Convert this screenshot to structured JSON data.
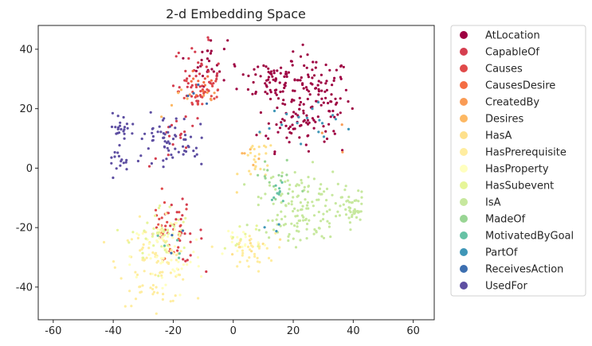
{
  "chart_data": {
    "type": "scatter",
    "title": "2-d Embedding Space",
    "xlabel": "",
    "ylabel": "",
    "xlim": [
      -65,
      67
    ],
    "ylim": [
      -51,
      48
    ],
    "xticks": [
      -60,
      -40,
      -20,
      0,
      20,
      40,
      60
    ],
    "yticks": [
      -40,
      -20,
      0,
      20,
      40
    ],
    "grid": false,
    "legend_position": "outside-right",
    "series": [
      {
        "name": "AtLocation",
        "color": "#9e0142",
        "clusters": [
          {
            "x": 27,
            "y": 24,
            "sx": 6,
            "sy": 7,
            "n": 120
          },
          {
            "x": 12,
            "y": 30,
            "sx": 5,
            "sy": 4,
            "n": 60
          },
          {
            "x": 20,
            "y": 14,
            "sx": 6,
            "sy": 4,
            "n": 40
          },
          {
            "x": -8,
            "y": 36,
            "sx": 3,
            "sy": 4,
            "n": 25
          }
        ]
      },
      {
        "name": "CapableOf",
        "color": "#d53e4f",
        "clusters": [
          {
            "x": -12,
            "y": 30,
            "sx": 4,
            "sy": 6,
            "n": 45
          },
          {
            "x": -18,
            "y": -22,
            "sx": 4,
            "sy": 5,
            "n": 30
          },
          {
            "x": -20,
            "y": 8,
            "sx": 4,
            "sy": 4,
            "n": 15
          }
        ]
      },
      {
        "name": "Causes",
        "color": "#e04a4a",
        "clusters": [
          {
            "x": -10,
            "y": 26,
            "sx": 4,
            "sy": 4,
            "n": 30
          },
          {
            "x": -22,
            "y": -20,
            "sx": 4,
            "sy": 4,
            "n": 25
          }
        ]
      },
      {
        "name": "CausesDesire",
        "color": "#f46d43",
        "clusters": [
          {
            "x": -12,
            "y": 27,
            "sx": 3,
            "sy": 3,
            "n": 10
          },
          {
            "x": -20,
            "y": -26,
            "sx": 3,
            "sy": 3,
            "n": 6
          }
        ]
      },
      {
        "name": "CreatedBy",
        "color": "#f99b55",
        "clusters": [
          {
            "x": -10,
            "y": 24,
            "sx": 3,
            "sy": 3,
            "n": 6
          },
          {
            "x": 32,
            "y": 10,
            "sx": 3,
            "sy": 3,
            "n": 3
          }
        ]
      },
      {
        "name": "Desires",
        "color": "#fdb863",
        "clusters": [
          {
            "x": -16,
            "y": 20,
            "sx": 3,
            "sy": 3,
            "n": 5
          },
          {
            "x": 6,
            "y": 6,
            "sx": 3,
            "sy": 3,
            "n": 5
          }
        ]
      },
      {
        "name": "HasA",
        "color": "#fee08b",
        "clusters": [
          {
            "x": 8,
            "y": 2,
            "sx": 3,
            "sy": 4,
            "n": 25
          },
          {
            "x": 6,
            "y": -26,
            "sx": 4,
            "sy": 3,
            "n": 10
          }
        ]
      },
      {
        "name": "HasPrerequisite",
        "color": "#ffeda0",
        "clusters": [
          {
            "x": -26,
            "y": -32,
            "sx": 6,
            "sy": 7,
            "n": 90
          },
          {
            "x": 6,
            "y": -28,
            "sx": 4,
            "sy": 3,
            "n": 30
          }
        ]
      },
      {
        "name": "HasProperty",
        "color": "#ffffbf",
        "clusters": [
          {
            "x": -22,
            "y": -30,
            "sx": 6,
            "sy": 7,
            "n": 60
          },
          {
            "x": 2,
            "y": -24,
            "sx": 4,
            "sy": 3,
            "n": 15
          }
        ]
      },
      {
        "name": "HasSubevent",
        "color": "#e6f598",
        "clusters": [
          {
            "x": -24,
            "y": -22,
            "sx": 5,
            "sy": 5,
            "n": 40
          },
          {
            "x": 4,
            "y": -22,
            "sx": 4,
            "sy": 3,
            "n": 10
          }
        ]
      },
      {
        "name": "IsA",
        "color": "#c7e89e",
        "clusters": [
          {
            "x": 22,
            "y": -12,
            "sx": 7,
            "sy": 6,
            "n": 120
          },
          {
            "x": 40,
            "y": -14,
            "sx": 2,
            "sy": 3,
            "n": 40
          },
          {
            "x": 20,
            "y": -22,
            "sx": 4,
            "sy": 3,
            "n": 20
          }
        ]
      },
      {
        "name": "MadeOf",
        "color": "#99d594",
        "clusters": [
          {
            "x": 14,
            "y": -4,
            "sx": 4,
            "sy": 4,
            "n": 15
          }
        ]
      },
      {
        "name": "MotivatedByGoal",
        "color": "#66c2a5",
        "clusters": [
          {
            "x": 16,
            "y": -8,
            "sx": 3,
            "sy": 3,
            "n": 10
          },
          {
            "x": -22,
            "y": -26,
            "sx": 3,
            "sy": 3,
            "n": 5
          }
        ]
      },
      {
        "name": "PartOf",
        "color": "#3f96b7",
        "clusters": [
          {
            "x": 20,
            "y": 16,
            "sx": 5,
            "sy": 3,
            "n": 12
          },
          {
            "x": 32,
            "y": 15,
            "sx": 3,
            "sy": 2,
            "n": 6
          },
          {
            "x": 14,
            "y": -20,
            "sx": 2,
            "sy": 2,
            "n": 3
          }
        ]
      },
      {
        "name": "ReceivesAction",
        "color": "#3d6fb0",
        "clusters": [
          {
            "x": -12,
            "y": 25,
            "sx": 3,
            "sy": 3,
            "n": 4
          },
          {
            "x": -20,
            "y": -24,
            "sx": 3,
            "sy": 3,
            "n": 3
          }
        ]
      },
      {
        "name": "UsedFor",
        "color": "#5e4fa2",
        "clusters": [
          {
            "x": -24,
            "y": 10,
            "sx": 5,
            "sy": 4,
            "n": 50
          },
          {
            "x": -37,
            "y": 14,
            "sx": 2,
            "sy": 2,
            "n": 20
          },
          {
            "x": -39,
            "y": 2,
            "sx": 2,
            "sy": 2,
            "n": 15
          },
          {
            "x": -14,
            "y": 6,
            "sx": 3,
            "sy": 3,
            "n": 15
          }
        ]
      }
    ]
  }
}
